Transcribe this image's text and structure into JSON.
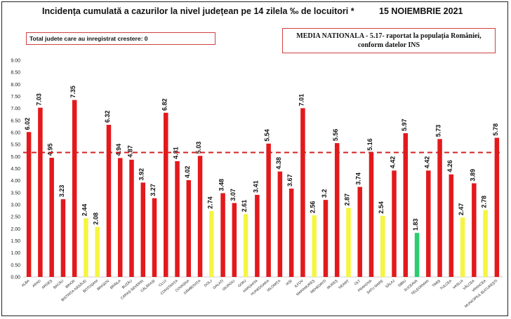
{
  "header": {
    "title": "Incidența cumulată a cazurilor la nivel județean pe 14 zilela ‰ de locuitori *",
    "date": "15 NOIEMBRIE 2021"
  },
  "info": {
    "left_box": "Total judete care au inregistrat crestere: 0",
    "right_box_line1": "MEDIA NATIONALA - 5.17- raportat la populația României,",
    "right_box_line2": "conform datelor INS"
  },
  "colors": {
    "red": "#e3191c",
    "yellow": "#f5f542",
    "green": "#2ecc71",
    "reference_line": "#d42020"
  },
  "chart_data": {
    "type": "bar",
    "title": "Incidența cumulată a cazurilor la nivel județean pe 14 zilela ‰ de locuitori *",
    "ylim": [
      0,
      9
    ],
    "yticks": [
      "0.00",
      "0.50",
      "1.00",
      "1.50",
      "2.00",
      "2.50",
      "3.00",
      "3.50",
      "4.00",
      "4.50",
      "5.00",
      "5.50",
      "6.00",
      "6.50",
      "7.00",
      "7.50",
      "8.00",
      "8.50",
      "9.00"
    ],
    "reference_value": 5.17,
    "grid": false,
    "categories": [
      "ALBA",
      "ARAD",
      "ARGEȘ",
      "BACĂU",
      "BIHOR",
      "BISTRIȚA-NĂSĂUD",
      "BOTOȘANI",
      "BRAȘOV",
      "BRĂILA",
      "BUZĂU",
      "CARAȘ-SEVERIN",
      "CĂLĂRAȘI",
      "CLUJ",
      "CONSTANȚA",
      "COVASNA",
      "DÂMBOVIȚA",
      "DOLJ",
      "GALAȚI",
      "GIURGIU",
      "GORJ",
      "HARGHITA",
      "HUNEDOARA",
      "IALOMIȚA",
      "IAȘI",
      "ILFOV",
      "MARAMUREȘ",
      "MEHEDINȚI",
      "MUREȘ",
      "NEAMȚ",
      "OLT",
      "PRAHOVA",
      "SATU MARE",
      "SĂLAJ",
      "SIBIU",
      "SUCEAVA",
      "TELEORMAN",
      "TIMIȘ",
      "TULCEA",
      "VASLUI",
      "VÂLCEA",
      "VRANCEA",
      "MUNICIPIUL BUCUREȘTI"
    ],
    "values": [
      6.02,
      7.03,
      4.95,
      3.23,
      7.35,
      2.44,
      2.08,
      6.32,
      4.94,
      4.87,
      3.92,
      3.27,
      6.82,
      4.81,
      4.02,
      5.03,
      2.74,
      3.48,
      3.07,
      2.61,
      3.41,
      5.54,
      4.38,
      3.67,
      7.01,
      2.56,
      3.2,
      5.56,
      2.87,
      3.74,
      5.16,
      2.54,
      4.42,
      5.97,
      1.83,
      4.42,
      5.73,
      4.26,
      2.47,
      3.89,
      2.78,
      5.78
    ],
    "value_labels": [
      "6.02",
      "7.03",
      "4.95",
      "3.23",
      "7.35",
      "2.44",
      "2.08",
      "6.32",
      "4.94",
      "4.87",
      "3.92",
      "3.27",
      "6.82",
      "4.81",
      "4.02",
      "5.03",
      "2.74",
      "3.48",
      "3.07",
      "2.61",
      "3.41",
      "5.54",
      "4.38",
      "3.67",
      "7.01",
      "2.56",
      "3.2",
      "5.56",
      "2.87",
      "3.74",
      "5.16",
      "2.54",
      "4.42",
      "5.97",
      "1.83",
      "4.42",
      "5.73",
      "4.26",
      "2.47",
      "3.89",
      "2.78",
      "5.78"
    ],
    "bar_colors": [
      "red",
      "red",
      "red",
      "red",
      "red",
      "yellow",
      "yellow",
      "red",
      "red",
      "red",
      "red",
      "red",
      "red",
      "red",
      "red",
      "red",
      "yellow",
      "red",
      "red",
      "yellow",
      "red",
      "red",
      "red",
      "red",
      "red",
      "yellow",
      "red",
      "red",
      "yellow",
      "red",
      "red",
      "yellow",
      "red",
      "red",
      "green",
      "red",
      "red",
      "red",
      "yellow",
      "red",
      "yellow",
      "red"
    ]
  }
}
